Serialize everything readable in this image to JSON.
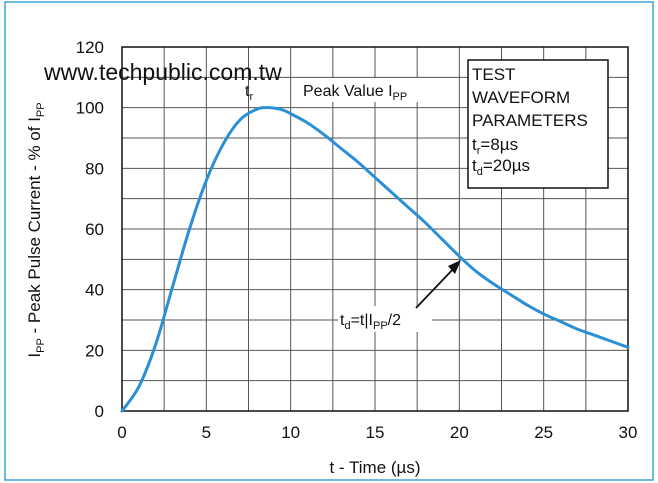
{
  "watermark": "www.techpublic.com.tw",
  "chart_data": {
    "type": "line",
    "title": "",
    "xlabel": "t - Time (µs)",
    "ylabel": "IPP - Peak Pulse Current - % of IPP",
    "xlim": [
      0,
      30
    ],
    "ylim": [
      0,
      120
    ],
    "xticks": [
      0,
      5,
      10,
      15,
      20,
      25,
      30
    ],
    "yticks": [
      0,
      20,
      40,
      60,
      80,
      100,
      120
    ],
    "grid": true,
    "series": [
      {
        "x": [
          0,
          1,
          2,
          3,
          4,
          5,
          6,
          7,
          8,
          8.7,
          9.5,
          10,
          11,
          12,
          13,
          14,
          15,
          16,
          17,
          18,
          19,
          20,
          21,
          22,
          23,
          24,
          25,
          26,
          27,
          28,
          29,
          30
        ],
        "y": [
          0,
          8,
          22,
          41,
          60,
          76,
          88,
          96,
          99.5,
          100,
          99.3,
          98,
          95,
          91,
          86.5,
          82,
          77,
          72,
          67,
          62,
          56.5,
          51,
          46,
          42,
          38.5,
          35,
          32,
          29.5,
          27,
          25,
          23,
          21
        ],
        "color": "#2b8fd6"
      }
    ],
    "annotations": {
      "tr": {
        "main": "t",
        "sub": "r"
      },
      "peak": {
        "main": "Peak Value I",
        "sub": "PP"
      },
      "td": {
        "pre": "t",
        "presub": "d",
        "mid": "=t",
        "bar": "|",
        "i": "I",
        "isub": "PP",
        "post": "/2"
      }
    },
    "params": {
      "line1": "TEST",
      "line2": "WAVEFORM",
      "line3": "PARAMETERS",
      "tr": {
        "main": "t",
        "sub": "r",
        "value": "=8µs"
      },
      "td": {
        "main": "t",
        "sub": "d",
        "value": "=20µs"
      }
    },
    "ylabel_parts": {
      "i": "I",
      "isub": "PP",
      "mid": " - Peak Pulse Current - % of I",
      "endsub": "PP"
    }
  }
}
